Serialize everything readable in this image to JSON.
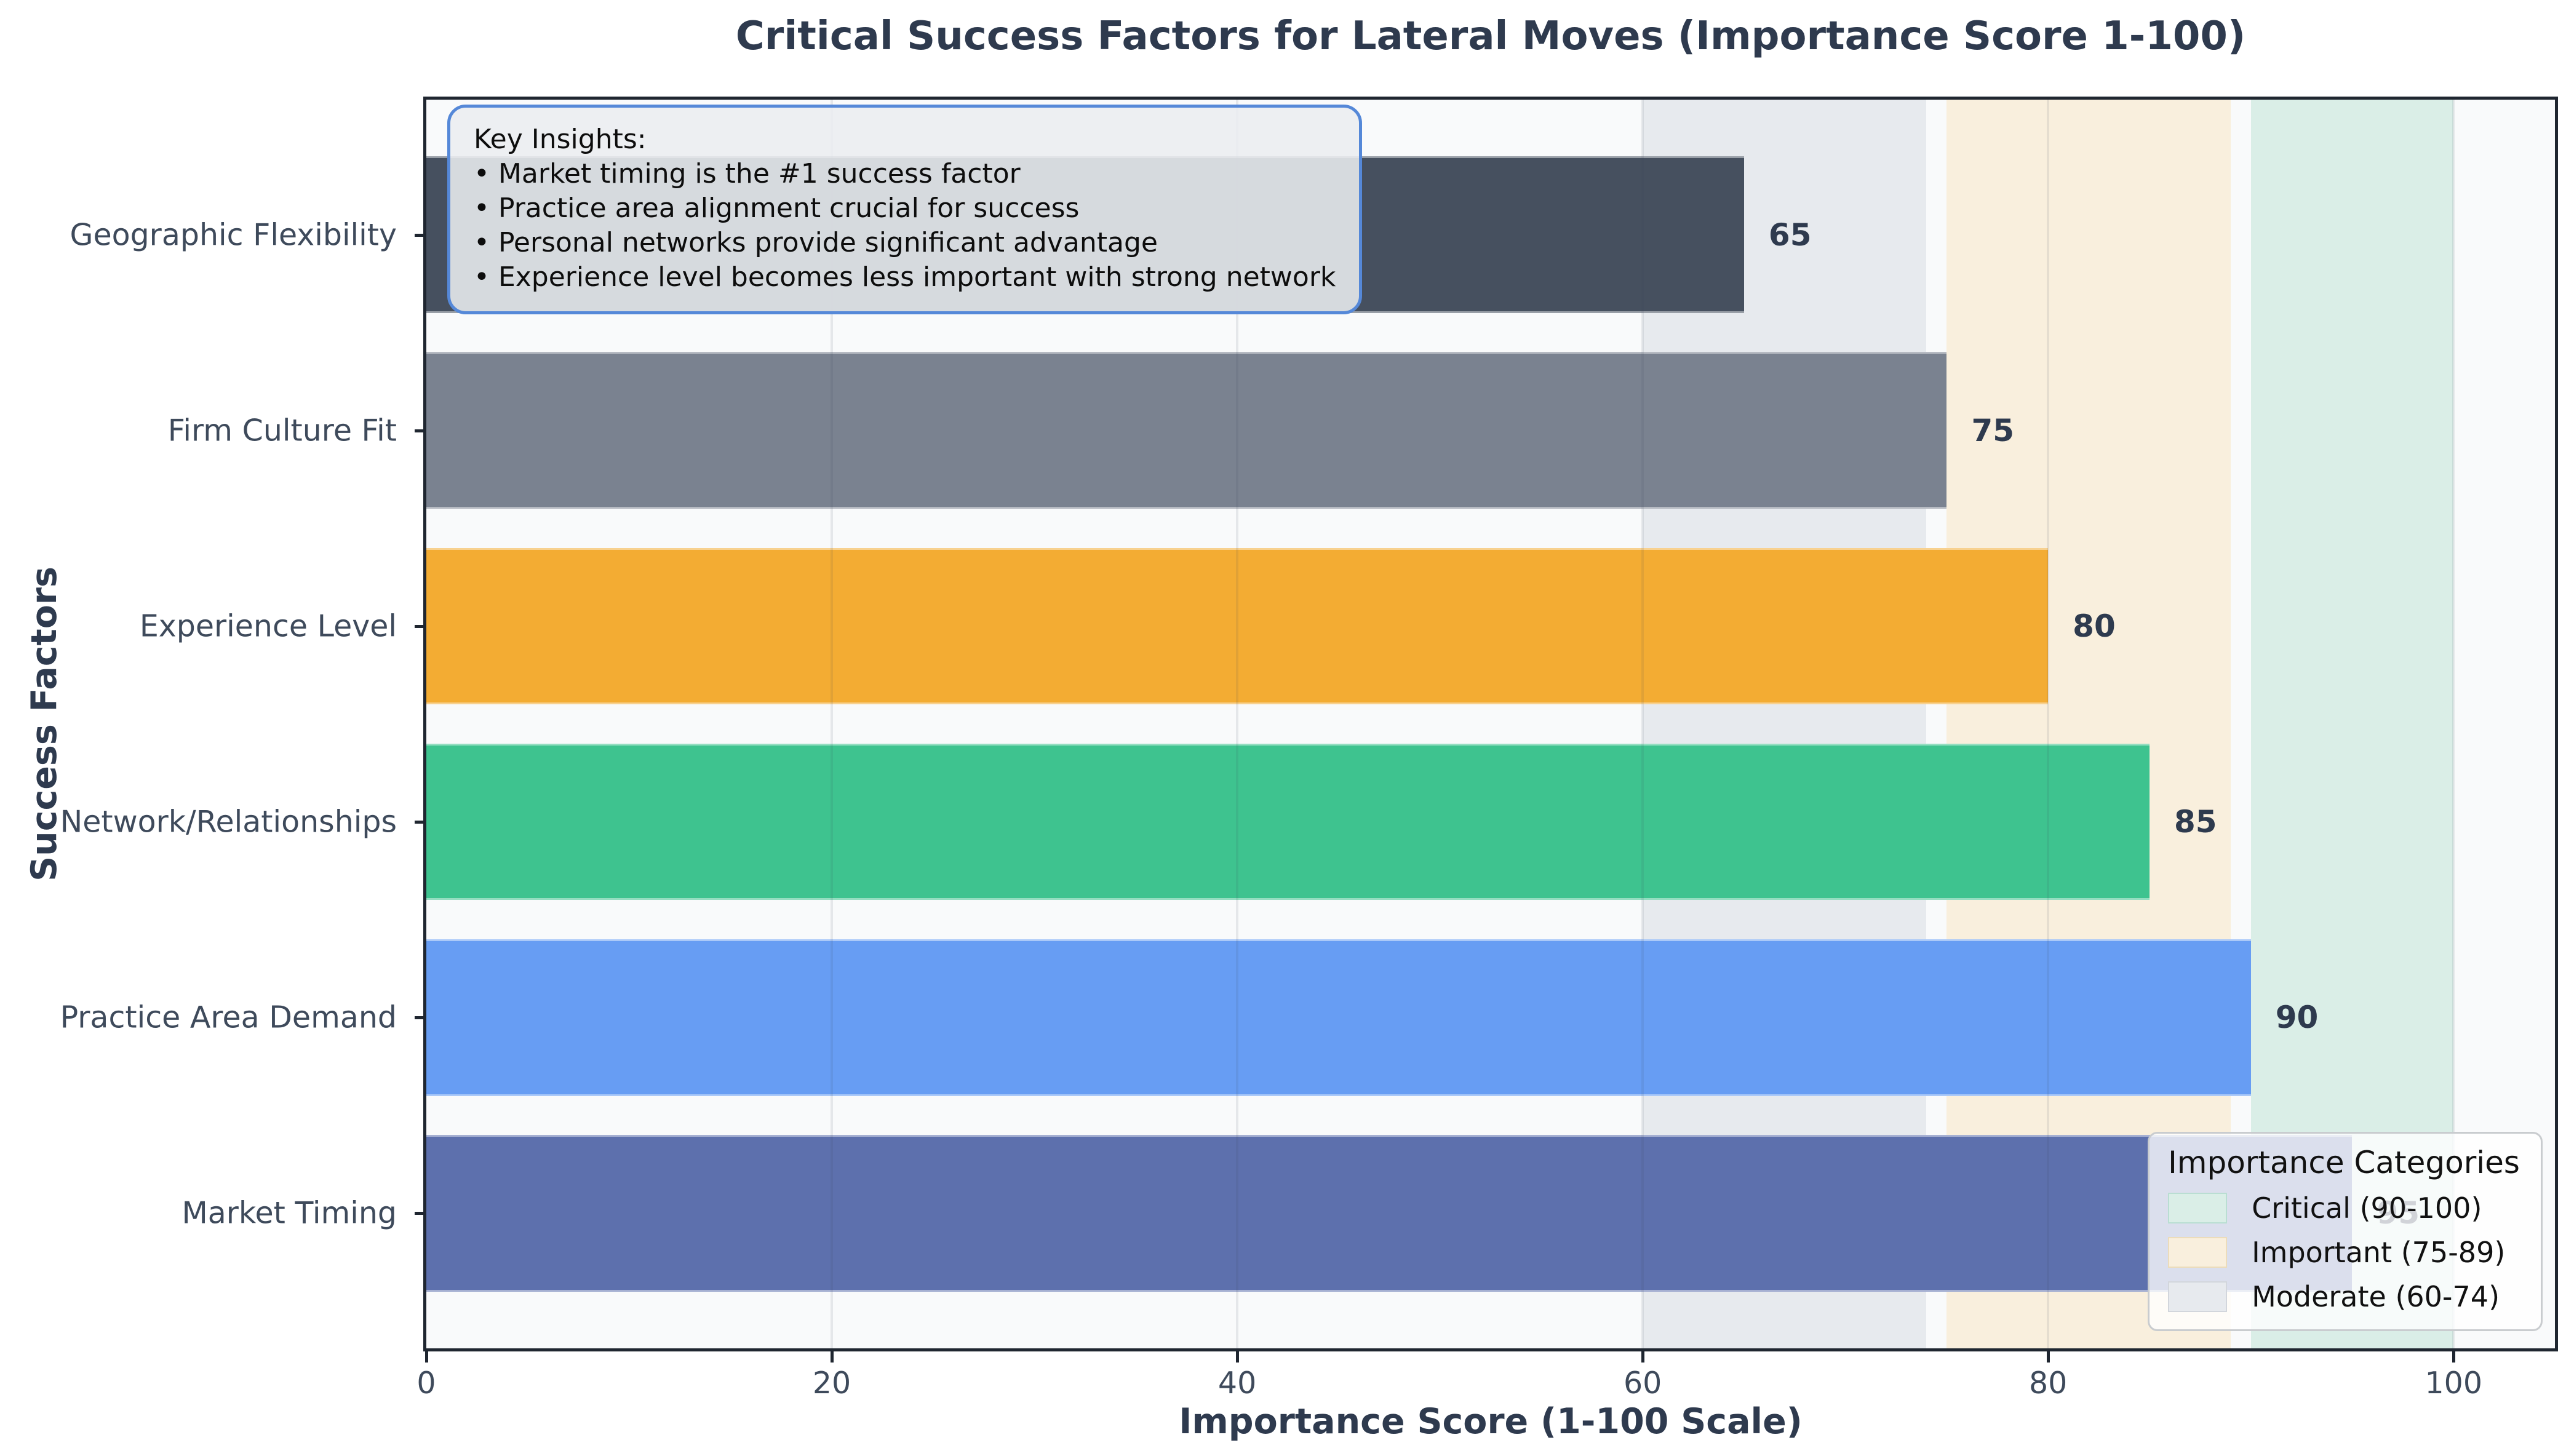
{
  "chart_data": {
    "type": "bar",
    "orientation": "horizontal",
    "title": "Critical Success Factors for Lateral Moves (Importance Score 1-100)",
    "xlabel": "Importance Score (1-100 Scale)",
    "ylabel": "Success Factors",
    "categories": [
      "Geographic Flexibility",
      "Firm Culture Fit",
      "Experience Level",
      "Network/Relationships",
      "Practice Area Demand",
      "Market Timing"
    ],
    "values": [
      65,
      75,
      80,
      85,
      90,
      95
    ],
    "bar_colors": [
      "#46505f",
      "#7a8290",
      "#f3ac33",
      "#3ec38f",
      "#679df3",
      "#5d70ad"
    ],
    "xlim": [
      0,
      105
    ],
    "xticks": [
      0,
      20,
      40,
      60,
      80,
      100
    ],
    "grid": "vertical gridlines at x ticks",
    "legend_position": "lower right",
    "bands": [
      {
        "label": "Critical (90-100)",
        "from": 90,
        "to": 100,
        "color": "#daeee7"
      },
      {
        "label": "Important (75-89)",
        "from": 75,
        "to": 89,
        "color": "#f9efdd"
      },
      {
        "label": "Moderate (60-74)",
        "from": 60,
        "to": 74,
        "color": "#e7eaee"
      }
    ],
    "legend": {
      "title": "Importance Categories",
      "items": [
        {
          "label": "Critical (90-100)",
          "color": "#daeee7",
          "border": "#b9ded2"
        },
        {
          "label": "Important (75-89)",
          "color": "#f9efdd",
          "border": "#ecdcba"
        },
        {
          "label": "Moderate (60-74)",
          "color": "#e7eaee",
          "border": "#d2d6dc"
        }
      ]
    },
    "annotation": {
      "heading": "Key Insights:",
      "bullets": [
        "• Market timing is the #1 success factor",
        "• Practice area alignment crucial for success",
        "• Personal networks provide significant advantage",
        "• Experience level becomes less important with strong network"
      ]
    }
  },
  "colors": {
    "figure_background": "#ffffff",
    "plot_background": "#f9fafb",
    "axis_spine": "#1f2630",
    "title_text": "#2e3a4e",
    "tick_text": "#3e4a5b",
    "value_label_text": "#2e3a4e",
    "insights_border": "#5588d8",
    "insights_background": "#ebedf0",
    "legend_border": "#c9cccf"
  }
}
